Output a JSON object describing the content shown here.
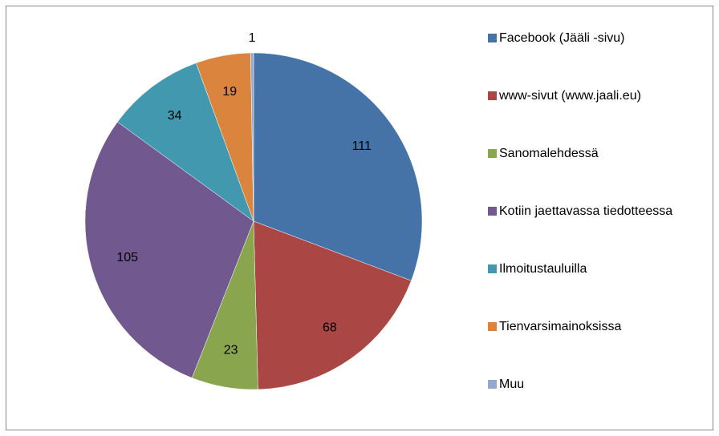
{
  "chart_data": {
    "type": "pie",
    "categories": [
      "Facebook (Jääli -sivu)",
      "www-sivut (www.jaali.eu)",
      "Sanomalehdessä",
      "Kotiin jaettavassa tiedotteessa",
      "Ilmoitustauluilla",
      "Tienvarsimainoksissa",
      "Muu"
    ],
    "values": [
      111,
      68,
      23,
      105,
      34,
      19,
      1
    ],
    "colors": [
      "#4572a7",
      "#aa4643",
      "#89a54e",
      "#71588f",
      "#4198af",
      "#db843d",
      "#93a9cf"
    ],
    "legend": "right"
  }
}
